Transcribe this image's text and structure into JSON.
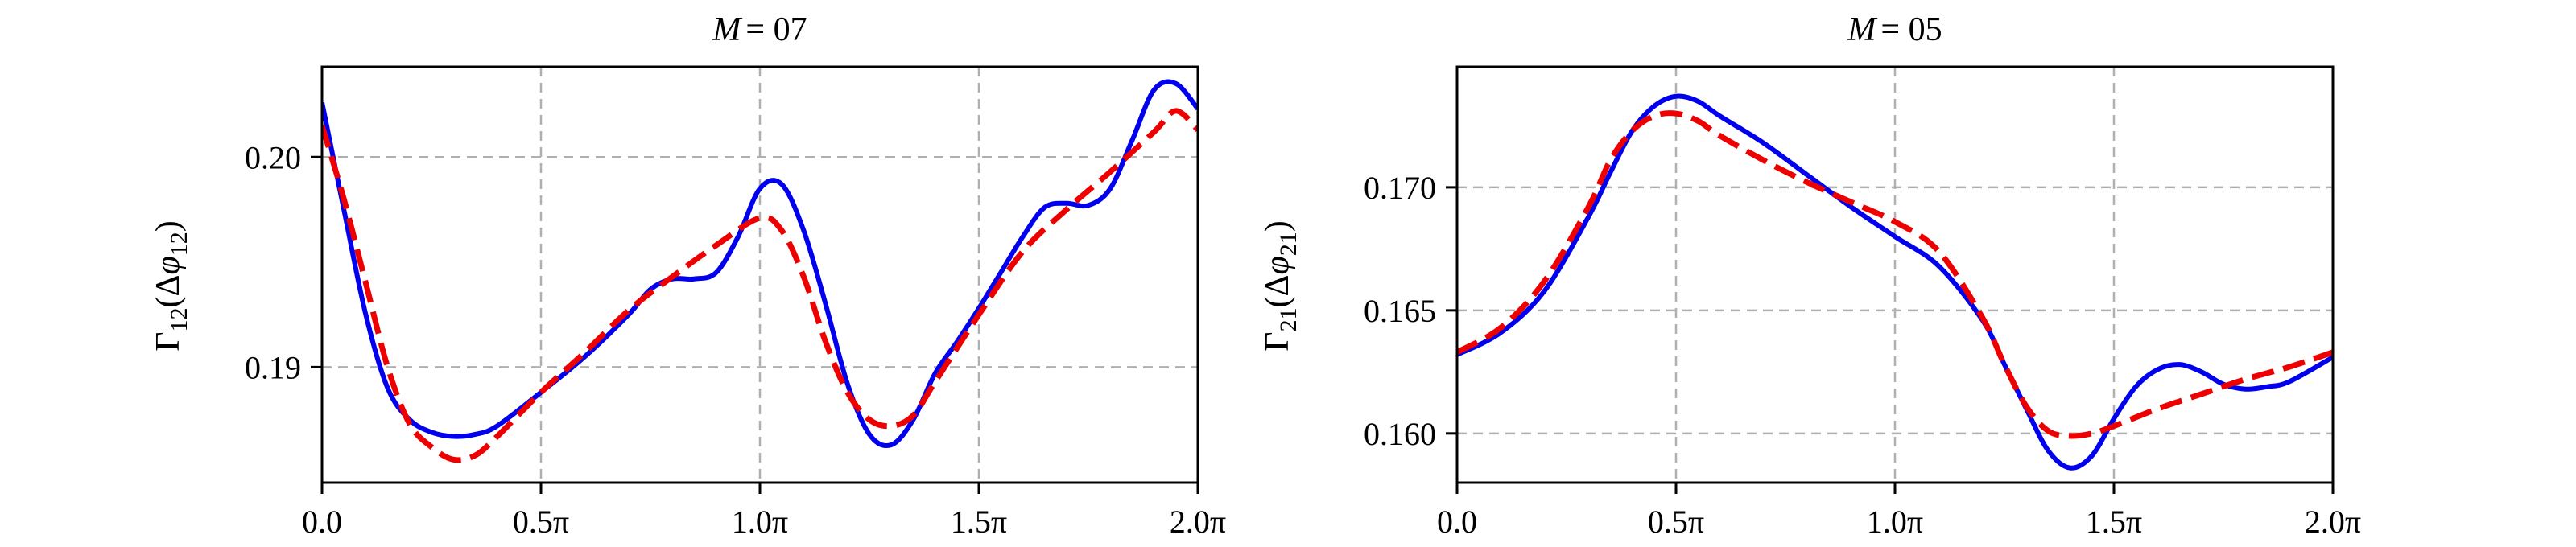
{
  "chart_data": [
    {
      "type": "line",
      "title": "M = 07",
      "title_var": "M",
      "title_eq": "= 07",
      "ylabel": "Γ12(Δφ12)",
      "ylabel_main": "Γ",
      "ylabel_sub": "12",
      "ylabel_arg": "(Δφ",
      "ylabel_argsub": "12",
      "ylabel_close": ")",
      "xlim": [
        0,
        2
      ],
      "ylim": [
        0.1845,
        0.2043
      ],
      "xticks": [
        {
          "value": 0.0,
          "label": "0.0"
        },
        {
          "value": 0.5,
          "label": "0.5π"
        },
        {
          "value": 1.0,
          "label": "1.0π"
        },
        {
          "value": 1.5,
          "label": "1.5π"
        },
        {
          "value": 2.0,
          "label": "2.0π"
        }
      ],
      "yticks": [
        {
          "value": 0.19,
          "label": "0.19"
        },
        {
          "value": 0.2,
          "label": "0.20"
        }
      ],
      "grid": true,
      "series": [
        {
          "color": "#0000ee",
          "style": "solid",
          "x": [
            0.0,
            0.05,
            0.1,
            0.15,
            0.2,
            0.25,
            0.3,
            0.35,
            0.4,
            0.5,
            0.6,
            0.7,
            0.75,
            0.8,
            0.85,
            0.9,
            0.95,
            1.0,
            1.05,
            1.1,
            1.15,
            1.2,
            1.25,
            1.3,
            1.35,
            1.4,
            1.45,
            1.5,
            1.55,
            1.6,
            1.65,
            1.7,
            1.75,
            1.8,
            1.85,
            1.9,
            1.95,
            2.0
          ],
          "y": [
            0.2026,
            0.1975,
            0.1925,
            0.189,
            0.1875,
            0.1869,
            0.1867,
            0.1868,
            0.1872,
            0.1888,
            0.1905,
            0.1925,
            0.1937,
            0.1942,
            0.1942,
            0.1945,
            0.1962,
            0.1985,
            0.1987,
            0.1965,
            0.193,
            0.1892,
            0.1868,
            0.1863,
            0.1875,
            0.1897,
            0.1912,
            0.1928,
            0.1945,
            0.1962,
            0.1976,
            0.1978,
            0.1977,
            0.1985,
            0.2008,
            0.2032,
            0.2035,
            0.2023
          ]
        },
        {
          "color": "#ee0000",
          "style": "dashed",
          "x": [
            0.0,
            0.05,
            0.1,
            0.15,
            0.2,
            0.25,
            0.3,
            0.35,
            0.4,
            0.5,
            0.6,
            0.7,
            0.8,
            0.9,
            1.0,
            1.05,
            1.1,
            1.15,
            1.2,
            1.25,
            1.3,
            1.35,
            1.4,
            1.5,
            1.6,
            1.7,
            1.8,
            1.9,
            1.95,
            2.0
          ],
          "y": [
            0.2015,
            0.198,
            0.194,
            0.19,
            0.1873,
            0.1862,
            0.1856,
            0.1858,
            0.1867,
            0.1888,
            0.1907,
            0.1927,
            0.1943,
            0.1958,
            0.1971,
            0.1965,
            0.1943,
            0.1912,
            0.1888,
            0.1875,
            0.1872,
            0.1877,
            0.1893,
            0.1925,
            0.1955,
            0.1975,
            0.1993,
            0.2012,
            0.2022,
            0.2013
          ]
        }
      ]
    },
    {
      "type": "line",
      "title": "M = 05",
      "title_var": "M",
      "title_eq": "= 05",
      "ylabel": "Γ21(Δφ21)",
      "ylabel_main": "Γ",
      "ylabel_sub": "21",
      "ylabel_arg": "(Δφ",
      "ylabel_argsub": "21",
      "ylabel_close": ")",
      "xlim": [
        0,
        2
      ],
      "ylim": [
        0.158,
        0.1749
      ],
      "xticks": [
        {
          "value": 0.0,
          "label": "0.0"
        },
        {
          "value": 0.5,
          "label": "0.5π"
        },
        {
          "value": 1.0,
          "label": "1.0π"
        },
        {
          "value": 1.5,
          "label": "1.5π"
        },
        {
          "value": 2.0,
          "label": "2.0π"
        }
      ],
      "yticks": [
        {
          "value": 0.16,
          "label": "0.160"
        },
        {
          "value": 0.165,
          "label": "0.165"
        },
        {
          "value": 0.17,
          "label": "0.170"
        }
      ],
      "grid": true,
      "series": [
        {
          "color": "#0000ee",
          "style": "solid",
          "x": [
            0.0,
            0.1,
            0.2,
            0.3,
            0.35,
            0.4,
            0.45,
            0.5,
            0.55,
            0.6,
            0.7,
            0.8,
            0.9,
            1.0,
            1.1,
            1.2,
            1.25,
            1.3,
            1.35,
            1.4,
            1.45,
            1.5,
            1.55,
            1.6,
            1.65,
            1.7,
            1.75,
            1.8,
            1.85,
            1.9,
            2.0
          ],
          "y": [
            0.1632,
            0.1641,
            0.1658,
            0.1688,
            0.1706,
            0.1723,
            0.1733,
            0.1737,
            0.1735,
            0.1729,
            0.1718,
            0.1705,
            0.1692,
            0.168,
            0.1668,
            0.1646,
            0.1628,
            0.161,
            0.1593,
            0.1586,
            0.1591,
            0.1606,
            0.1619,
            0.1626,
            0.1628,
            0.1625,
            0.162,
            0.1618,
            0.1619,
            0.1621,
            0.1631
          ]
        },
        {
          "color": "#ee0000",
          "style": "dashed",
          "x": [
            0.0,
            0.1,
            0.2,
            0.3,
            0.35,
            0.4,
            0.45,
            0.5,
            0.55,
            0.6,
            0.7,
            0.8,
            0.9,
            1.0,
            1.1,
            1.2,
            1.25,
            1.3,
            1.35,
            1.4,
            1.45,
            1.5,
            1.6,
            1.7,
            1.8,
            1.9,
            2.0
          ],
          "y": [
            0.1633,
            0.1643,
            0.1662,
            0.1692,
            0.1711,
            0.1723,
            0.1729,
            0.173,
            0.1727,
            0.1721,
            0.1711,
            0.1702,
            0.1694,
            0.1686,
            0.1674,
            0.1647,
            0.1628,
            0.1611,
            0.1601,
            0.1599,
            0.16,
            0.1603,
            0.161,
            0.1616,
            0.1622,
            0.1627,
            0.1633
          ]
        }
      ]
    }
  ]
}
